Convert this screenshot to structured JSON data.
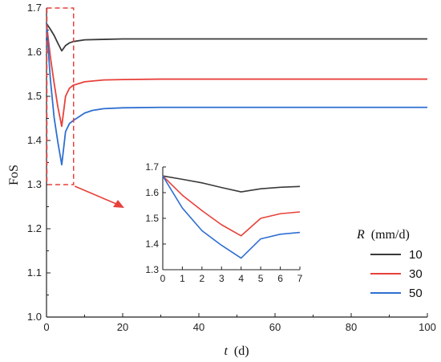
{
  "chart_data": {
    "type": "line",
    "xlabel_var": "t",
    "xlabel_unit": "(d)",
    "ylabel": "FoS",
    "xlim": [
      0,
      100
    ],
    "ylim": [
      1.0,
      1.7
    ],
    "x_ticks": [
      0,
      20,
      40,
      60,
      80,
      100
    ],
    "y_ticks": [
      1.0,
      1.1,
      1.2,
      1.3,
      1.4,
      1.5,
      1.6,
      1.7
    ],
    "legend": {
      "title_var": "R",
      "title_unit": "(mm/d)",
      "placement": "lower-right"
    },
    "series": [
      {
        "name": "10",
        "color": "#3a3a3a",
        "points": [
          [
            0,
            1.665
          ],
          [
            1,
            1.652
          ],
          [
            2,
            1.638
          ],
          [
            3,
            1.62
          ],
          [
            4,
            1.603
          ],
          [
            5,
            1.615
          ],
          [
            6,
            1.621
          ],
          [
            7,
            1.624
          ],
          [
            10,
            1.628
          ],
          [
            15,
            1.629
          ],
          [
            20,
            1.63
          ],
          [
            30,
            1.63
          ],
          [
            50,
            1.63
          ],
          [
            70,
            1.63
          ],
          [
            100,
            1.63
          ]
        ]
      },
      {
        "name": "30",
        "color": "#e8413b",
        "points": [
          [
            0,
            1.665
          ],
          [
            1,
            1.59
          ],
          [
            2,
            1.53
          ],
          [
            3,
            1.475
          ],
          [
            4,
            1.432
          ],
          [
            5,
            1.5
          ],
          [
            6,
            1.518
          ],
          [
            7,
            1.525
          ],
          [
            10,
            1.533
          ],
          [
            15,
            1.537
          ],
          [
            20,
            1.538
          ],
          [
            30,
            1.539
          ],
          [
            50,
            1.539
          ],
          [
            70,
            1.539
          ],
          [
            100,
            1.539
          ]
        ]
      },
      {
        "name": "50",
        "color": "#2f6fd1",
        "points": [
          [
            0,
            1.665
          ],
          [
            1,
            1.54
          ],
          [
            2,
            1.452
          ],
          [
            3,
            1.395
          ],
          [
            4,
            1.345
          ],
          [
            5,
            1.42
          ],
          [
            6,
            1.438
          ],
          [
            7,
            1.445
          ],
          [
            10,
            1.462
          ],
          [
            12,
            1.468
          ],
          [
            15,
            1.472
          ],
          [
            20,
            1.474
          ],
          [
            30,
            1.475
          ],
          [
            50,
            1.475
          ],
          [
            70,
            1.475
          ],
          [
            100,
            1.475
          ]
        ]
      }
    ],
    "inset": {
      "xlim": [
        0,
        7
      ],
      "ylim": [
        1.3,
        1.7
      ],
      "x_ticks": [
        0,
        1,
        2,
        3,
        4,
        5,
        6,
        7
      ],
      "y_ticks": [
        1.3,
        1.4,
        1.5,
        1.6,
        1.7
      ],
      "zoom_box": {
        "x_range": [
          0,
          7
        ],
        "y_range": [
          1.3,
          1.7
        ],
        "color": "#e8413b"
      }
    }
  }
}
